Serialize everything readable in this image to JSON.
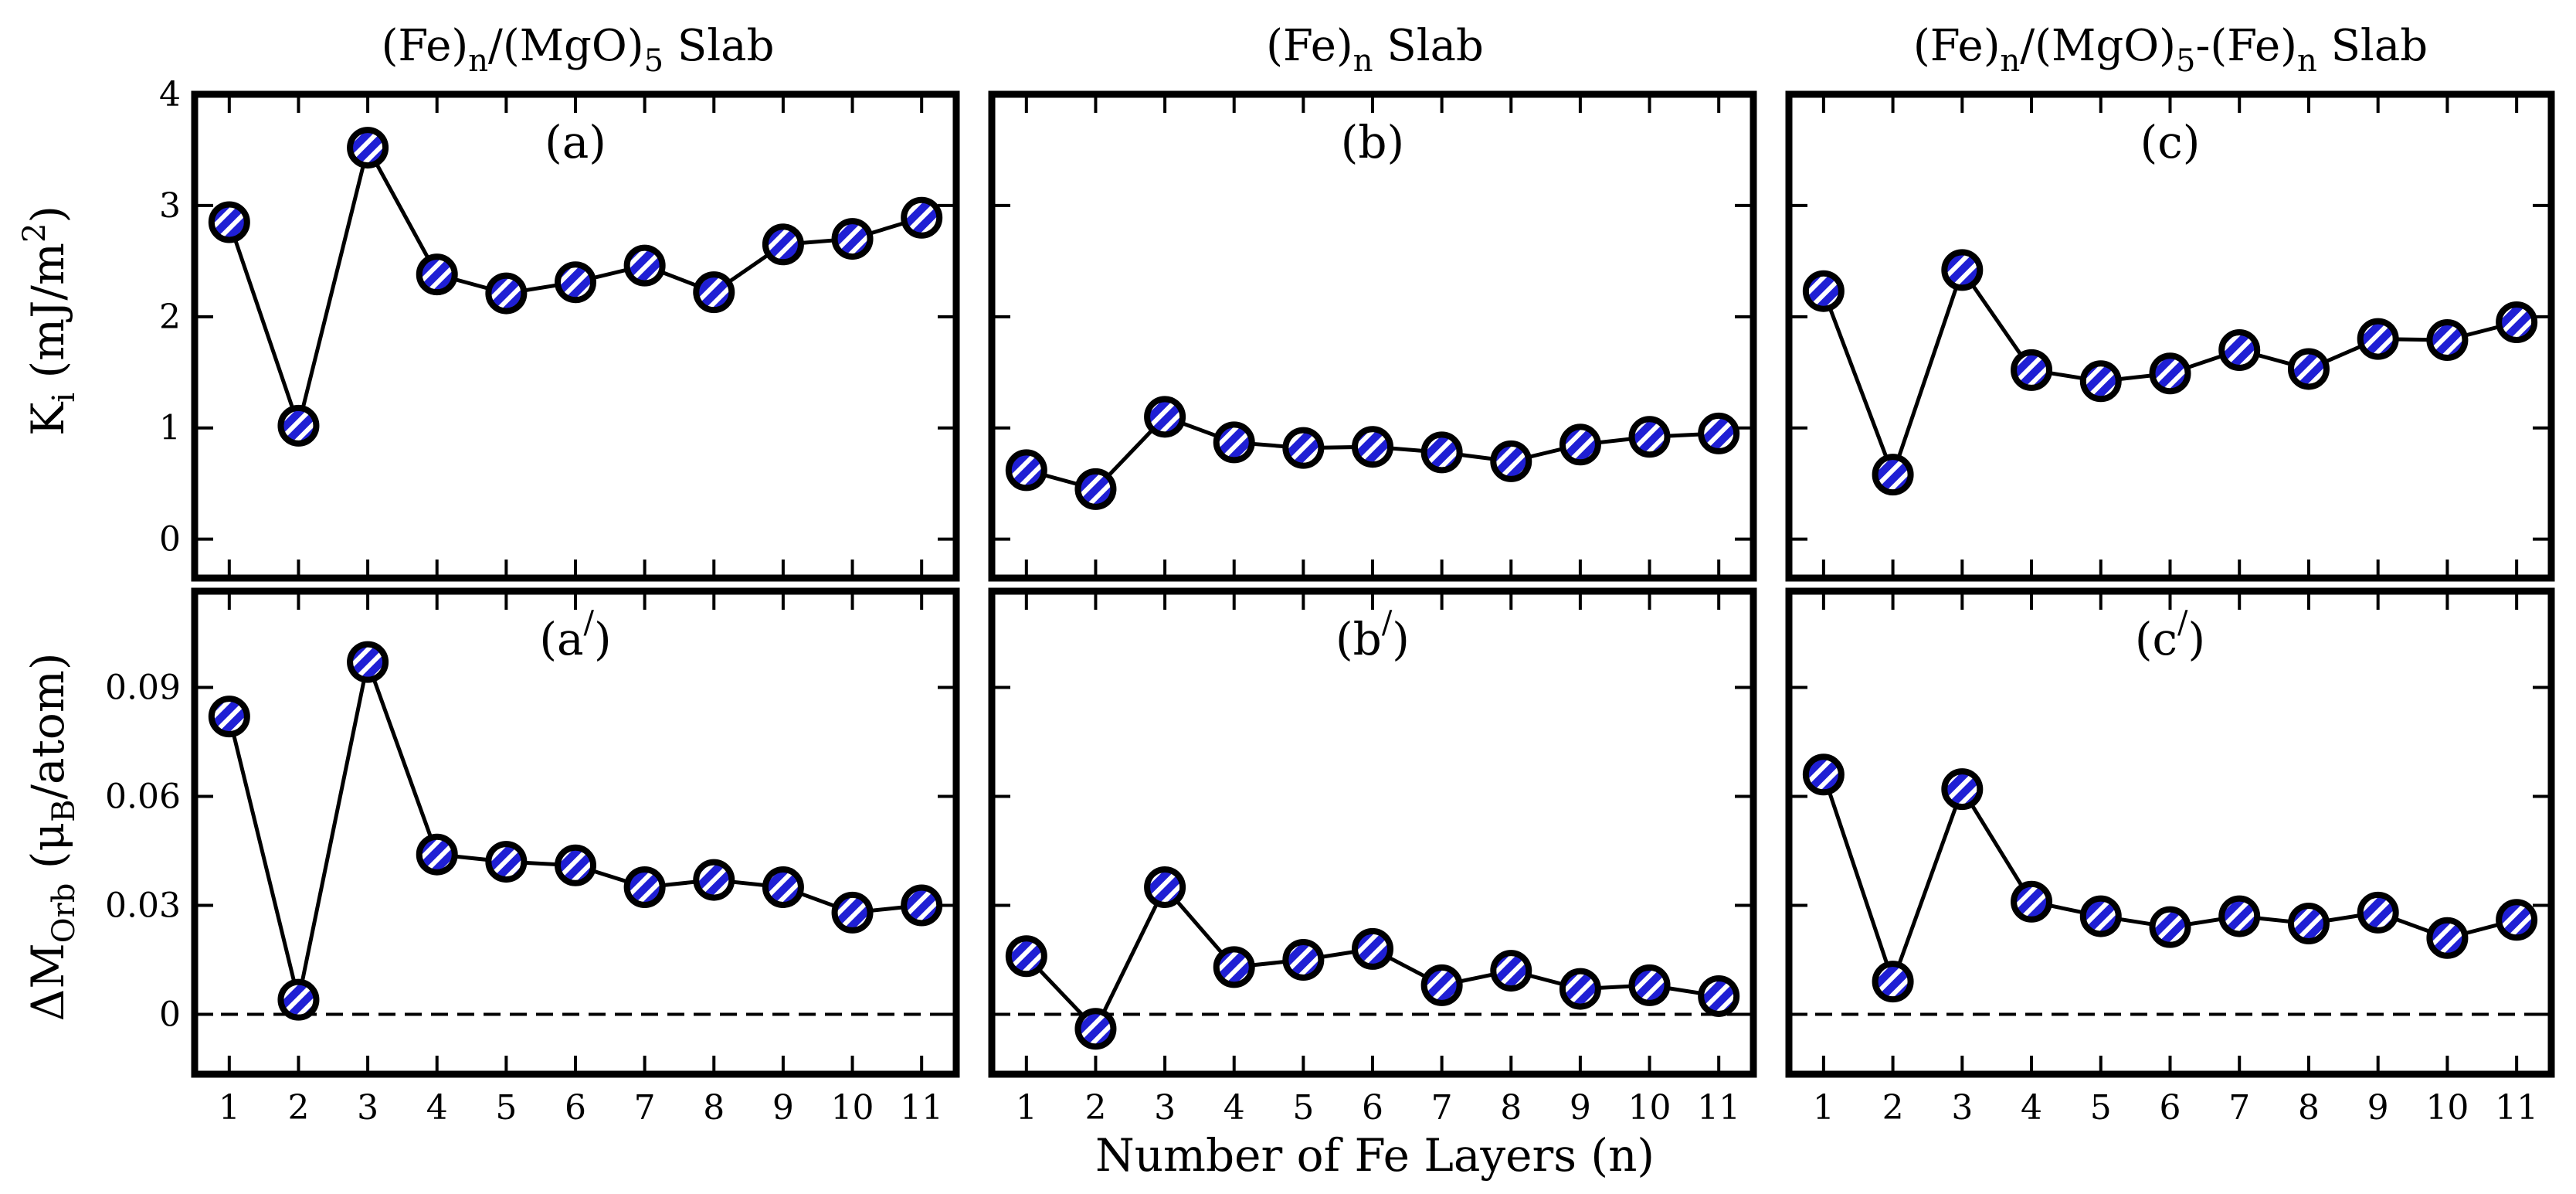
{
  "chart_data": {
    "type": "scatter",
    "xlabel": "Number of Fe Layers (n)",
    "x": [
      1,
      2,
      3,
      4,
      5,
      6,
      7,
      8,
      9,
      10,
      11
    ],
    "column_titles": [
      {
        "base": "(Fe)",
        "sub": "n",
        "mid": "/(MgO)",
        "sub2": "5",
        "tail": " Slab"
      },
      {
        "base": "(Fe)",
        "sub": "n",
        "mid": " Slab",
        "sub2": "",
        "tail": ""
      },
      {
        "base": "(Fe)",
        "sub": "n",
        "mid": "/(MgO)",
        "sub2": "5",
        "tail": "-(Fe)",
        "sub3": "n",
        "tail2": " Slab"
      }
    ],
    "rows": [
      {
        "ylabel": {
          "pre": "K",
          "sub": "i",
          "mid": " (mJ/m",
          "sup": "2",
          "post": ")"
        },
        "ylim": [
          -0.35,
          4.0
        ],
        "yticks": [
          0,
          1,
          2,
          3,
          4
        ],
        "ytick_labels": [
          "0",
          "1",
          "2",
          "3",
          "4"
        ],
        "zero_line": false
      },
      {
        "ylabel": {
          "pre": "ΔM",
          "sub": "Orb",
          "mid": " (μ",
          "sub2": "B",
          "post": "/atom)"
        },
        "ylim": [
          -0.0165,
          0.1165
        ],
        "yticks": [
          0,
          0.03,
          0.06,
          0.09
        ],
        "ytick_labels": [
          "0",
          "0.03",
          "0.06",
          "0.09"
        ],
        "zero_line": true
      }
    ],
    "panels": [
      {
        "label": "(a)",
        "prime": "",
        "row": 0,
        "col": 0,
        "values": [
          2.85,
          1.02,
          3.52,
          2.38,
          2.21,
          2.31,
          2.46,
          2.22,
          2.65,
          2.7,
          2.89
        ]
      },
      {
        "label": "(b)",
        "prime": "",
        "row": 0,
        "col": 1,
        "values": [
          0.62,
          0.45,
          1.1,
          0.87,
          0.82,
          0.83,
          0.78,
          0.7,
          0.85,
          0.92,
          0.95
        ]
      },
      {
        "label": "(c)",
        "prime": "",
        "row": 0,
        "col": 2,
        "values": [
          2.23,
          0.58,
          2.42,
          1.52,
          1.42,
          1.49,
          1.7,
          1.53,
          1.8,
          1.79,
          1.95
        ]
      },
      {
        "label": "(a",
        "prime": "/",
        "close": ")",
        "row": 1,
        "col": 0,
        "values": [
          0.082,
          0.004,
          0.097,
          0.044,
          0.042,
          0.041,
          0.035,
          0.037,
          0.035,
          0.028,
          0.03
        ]
      },
      {
        "label": "(b",
        "prime": "/",
        "close": ")",
        "row": 1,
        "col": 1,
        "values": [
          0.016,
          -0.004,
          0.035,
          0.013,
          0.015,
          0.018,
          0.008,
          0.012,
          0.007,
          0.008,
          0.005
        ]
      },
      {
        "label": "(c",
        "prime": "/",
        "close": ")",
        "row": 1,
        "col": 2,
        "values": [
          0.066,
          0.009,
          0.062,
          0.031,
          0.027,
          0.024,
          0.027,
          0.025,
          0.028,
          0.021,
          0.026
        ]
      }
    ],
    "marker": {
      "fill": "#1f1fd4",
      "hatch": "#ffffff",
      "edge": "#000000",
      "style": "diagonal-striped circle"
    }
  }
}
